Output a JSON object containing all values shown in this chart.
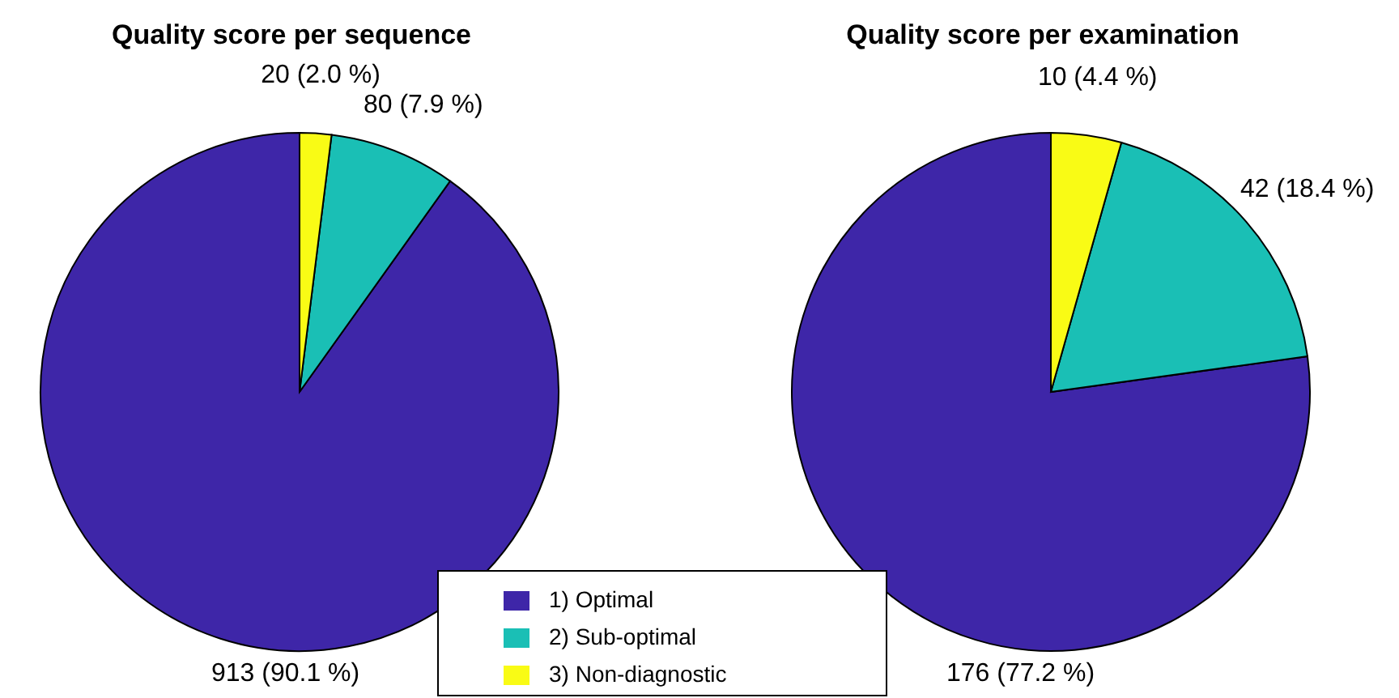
{
  "chart_data": [
    {
      "type": "pie",
      "title": "Quality score per sequence",
      "categories": [
        "1) Optimal",
        "2) Sub-optimal",
        "3) Non-diagnostic"
      ],
      "values": [
        913,
        80,
        20
      ],
      "colors": [
        "#3e26a8",
        "#1abfb5",
        "#f9fb15"
      ],
      "value_labels": [
        "913 (90.1 %)",
        "80 (7.9 %)",
        "20 (2.0 %)"
      ],
      "legend": "bottom"
    },
    {
      "type": "pie",
      "title": "Quality score per examination",
      "categories": [
        null,
        null,
        null
      ],
      "values": [
        176,
        42,
        10
      ],
      "colors": [
        "#3e26a8",
        "#1abfb5",
        "#f9fb15"
      ],
      "value_labels": [
        "176 (77.2 %)",
        "42 (18.4 %)",
        "10 (4.4 %)"
      ]
    }
  ]
}
